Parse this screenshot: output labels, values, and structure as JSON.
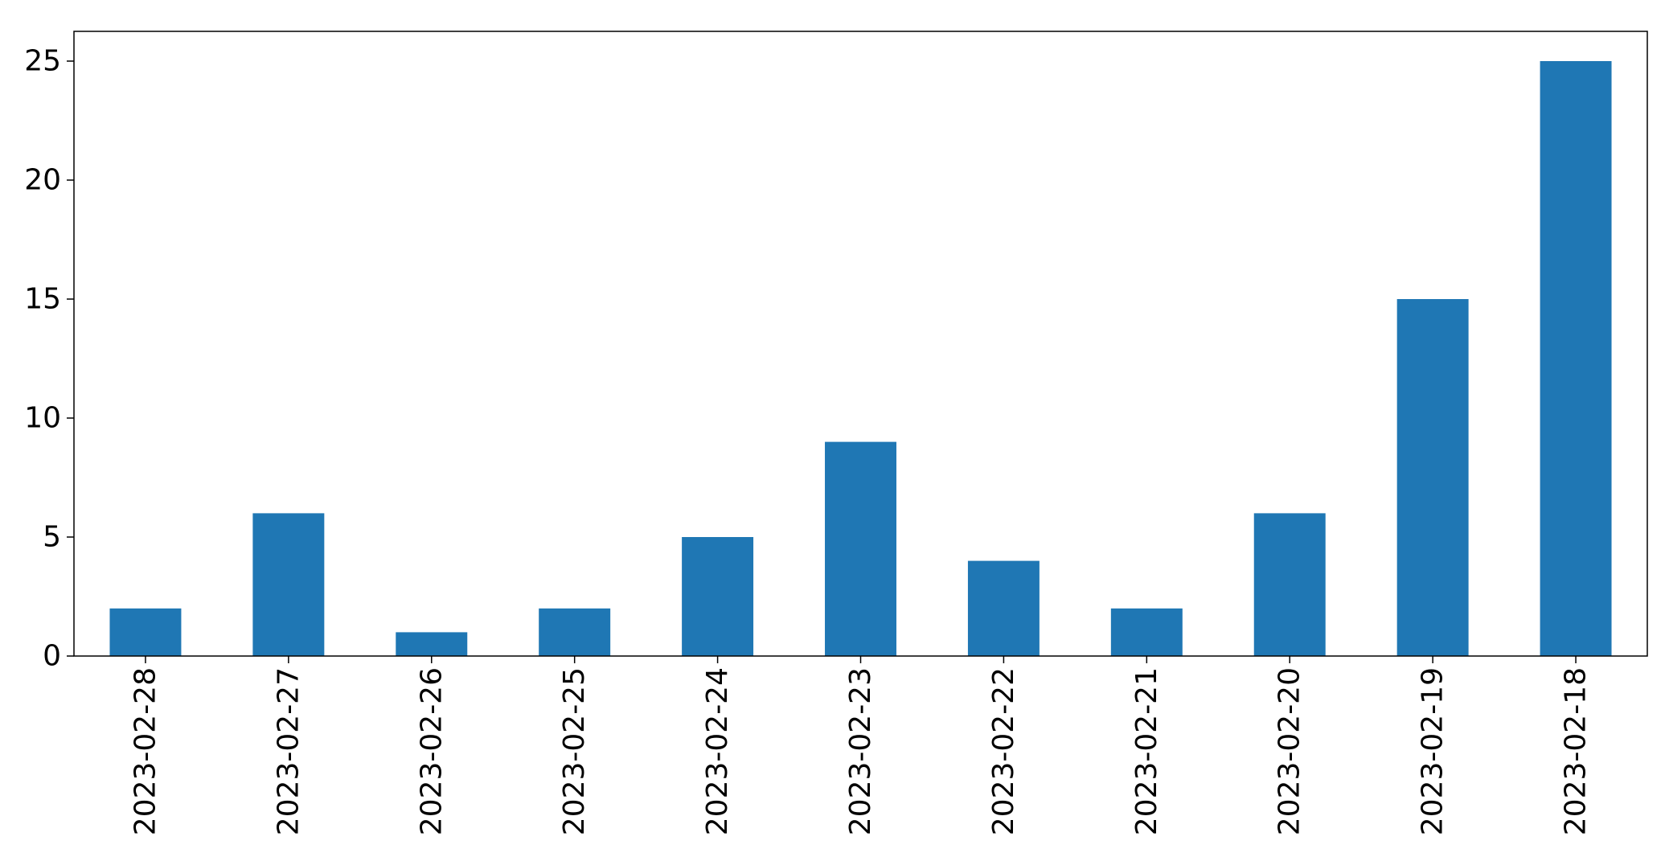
{
  "chart_data": {
    "type": "bar",
    "categories": [
      "2023-02-28",
      "2023-02-27",
      "2023-02-26",
      "2023-02-25",
      "2023-02-24",
      "2023-02-23",
      "2023-02-22",
      "2023-02-21",
      "2023-02-20",
      "2023-02-19",
      "2023-02-18"
    ],
    "values": [
      2,
      6,
      1,
      2,
      5,
      9,
      4,
      2,
      6,
      15,
      25
    ],
    "title": "",
    "xlabel": "",
    "ylabel": "",
    "ylim": [
      0,
      26.25
    ],
    "yticks": [
      0,
      5,
      10,
      15,
      20,
      25
    ],
    "grid": false,
    "legend": "none",
    "bar_color": "#1f77b4",
    "x_tick_rotation": "vertical"
  }
}
